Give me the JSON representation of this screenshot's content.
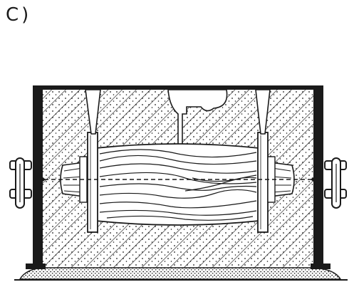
{
  "figure": {
    "panel_label": "C)",
    "colors": {
      "ink": "#1a1a1a",
      "paper": "#ffffff",
      "wood_grain": "#1a1a1a",
      "sand_dots": "#1a1a1a"
    },
    "parts": [
      "flask-frame",
      "cope-sand",
      "drag-sand",
      "parting-line",
      "wooden-pattern",
      "core-prints",
      "pattern-flanges",
      "sprue",
      "vent-pins",
      "flask-pins",
      "sand-bed"
    ]
  }
}
